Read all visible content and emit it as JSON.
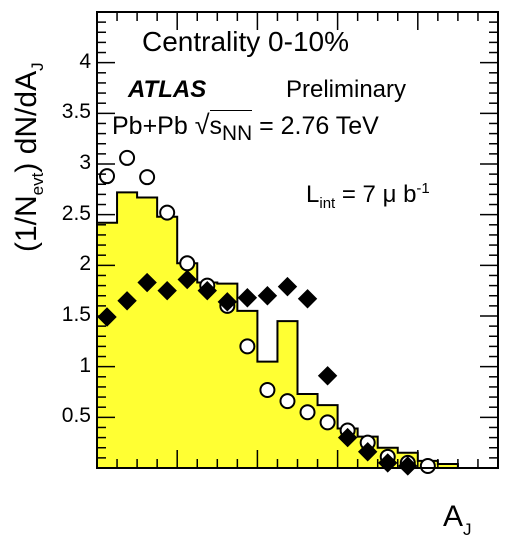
{
  "chart_data": {
    "type": "area",
    "xlabel": "A_J",
    "ylabel": "(1/N_evt) dN/dA_J",
    "ylim": [
      0,
      4.5
    ],
    "y_ticks": [
      0.5,
      1,
      1.5,
      2,
      2.5,
      3,
      3.5,
      4
    ],
    "y_tick_labels": [
      "0.5",
      "1",
      "1.5",
      "2",
      "2.5",
      "3",
      "3.5",
      "4"
    ],
    "grid": false,
    "annotations": {
      "centrality": "Centrality  0-10%",
      "experiment": "ATLAS",
      "status": "Preliminary",
      "energy_prefix": "Pb+Pb ",
      "energy_s": "s",
      "energy_sub": "NN",
      "energy_value": " = 2.76 TeV",
      "lumi_L": "L",
      "lumi_sub": "int",
      "lumi_value": " = 7 μ b",
      "lumi_sup": "-1"
    },
    "series": [
      {
        "style": "histogram-yellow-fill",
        "edges": [
          0,
          0.05,
          0.1,
          0.15,
          0.2,
          0.25,
          0.3,
          0.35,
          0.4,
          0.45,
          0.5,
          0.55,
          0.6,
          0.65,
          0.7,
          0.75,
          0.8,
          0.85,
          0.9,
          0.95,
          1.0
        ],
        "values": [
          2.42,
          2.72,
          2.67,
          2.48,
          2.02,
          1.83,
          1.82,
          1.55,
          1.05,
          1.45,
          0.73,
          0.62,
          0.39,
          0.31,
          0.2,
          0.15,
          0.07,
          0.04,
          0.0,
          0.0
        ]
      },
      {
        "style": "open-circles",
        "x": [
          0.025,
          0.075,
          0.125,
          0.175,
          0.225,
          0.275,
          0.325,
          0.375,
          0.425,
          0.475,
          0.525,
          0.575,
          0.625,
          0.675,
          0.725,
          0.775,
          0.825,
          0.875
        ],
        "y": [
          2.88,
          3.06,
          2.87,
          2.52,
          2.02,
          1.8,
          1.6,
          1.2,
          0.77,
          0.66,
          0.55,
          0.45,
          0.37,
          0.25,
          0.11,
          0.05,
          0.02,
          0.0
        ]
      },
      {
        "style": "filled-diamonds",
        "x": [
          0.025,
          0.075,
          0.125,
          0.175,
          0.225,
          0.275,
          0.325,
          0.375,
          0.425,
          0.475,
          0.525,
          0.575,
          0.625,
          0.675,
          0.725,
          0.775,
          0.825,
          0.875
        ],
        "y": [
          1.49,
          1.65,
          1.83,
          1.75,
          1.86,
          1.75,
          1.64,
          1.68,
          1.7,
          1.79,
          1.67,
          0.91,
          0.3,
          0.16,
          0.05,
          0.02,
          0.0,
          0.0
        ]
      }
    ]
  }
}
